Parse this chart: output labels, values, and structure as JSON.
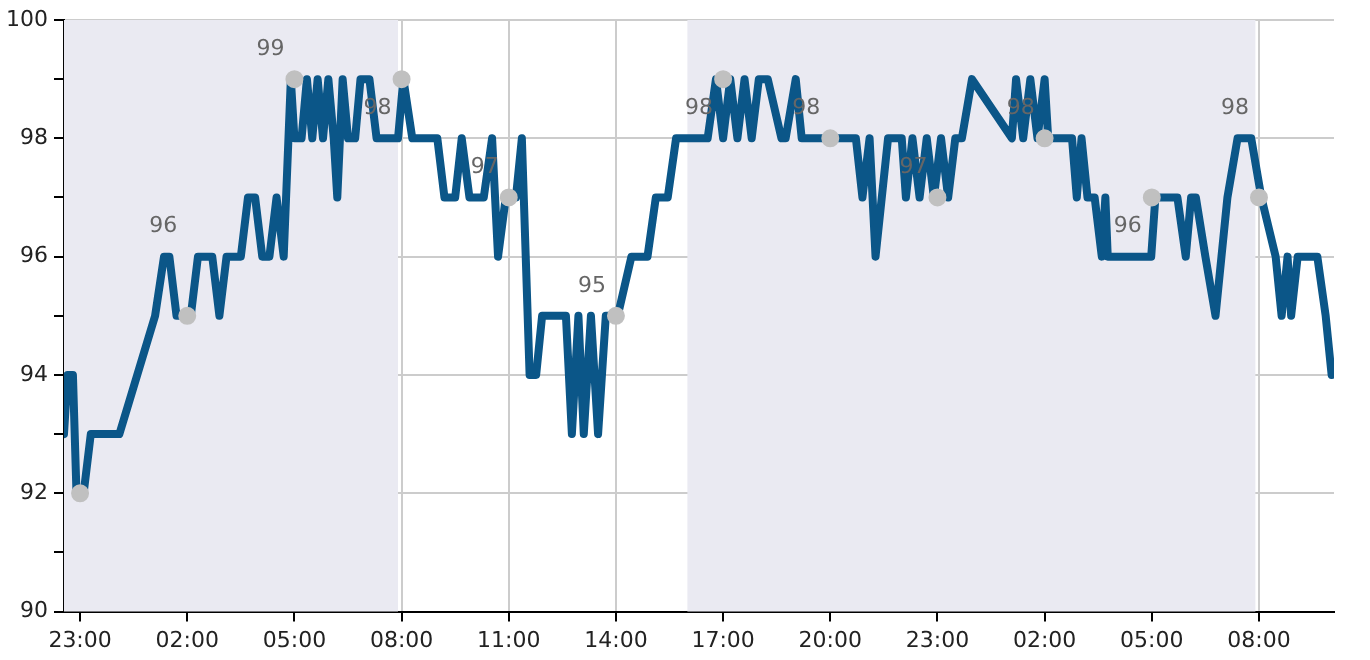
{
  "chart_data": {
    "type": "line",
    "xlim": [
      "--01-01T22:33",
      "--01-03T10:06"
    ],
    "xticks": [
      {
        "value": "--01-01T23:00",
        "label": "23:00"
      },
      {
        "value": "--01-02T02:00",
        "label": "02:00"
      },
      {
        "value": "--01-02T05:00",
        "label": "05:00"
      },
      {
        "value": "--01-02T08:00",
        "label": "08:00"
      },
      {
        "value": "--01-02T11:00",
        "label": "11:00"
      },
      {
        "value": "--01-02T14:00",
        "label": "14:00"
      },
      {
        "value": "--01-02T17:00",
        "label": "17:00"
      },
      {
        "value": "--01-02T20:00",
        "label": "20:00"
      },
      {
        "value": "--01-02T23:00",
        "label": "23:00"
      },
      {
        "value": "--01-03T02:00",
        "label": "02:00"
      },
      {
        "value": "--01-03T05:00",
        "label": "05:00"
      },
      {
        "value": "--01-03T08:00",
        "label": "08:00"
      }
    ],
    "ylim": [
      90,
      100
    ],
    "yticks": [
      90,
      {
        "value": 91,
        "label": null
      },
      92,
      {
        "value": 93,
        "label": null
      },
      94,
      {
        "value": 95,
        "label": null
      },
      96,
      {
        "value": 97,
        "label": null
      },
      98,
      {
        "value": 99,
        "label": null
      },
      100
    ],
    "grid": true,
    "bands": [
      {
        "axis": "x",
        "from": "--01-01T22:33",
        "to": "--01-02T07:54",
        "color": "#eaeaf2"
      },
      {
        "axis": "x",
        "from": "--01-02T16:00",
        "to": "--01-03T07:54",
        "color": "#eaeaf2"
      }
    ],
    "series": [
      {
        "type": "line",
        "color": "#0b5688",
        "x": [
          "--01-01T22:33",
          "--01-01T22:39",
          "--01-01T22:48",
          "--01-01T22:54",
          "--01-01T23:06",
          "--01-01T23:18",
          "--01-02T00:06",
          "--01-02T01:06",
          "--01-02T01:21",
          "--01-02T01:30",
          "--01-02T01:42",
          "--01-02T02:06",
          "--01-02T02:18",
          "--01-02T02:42",
          "--01-02T02:54",
          "--01-02T03:06",
          "--01-02T03:30",
          "--01-02T03:42",
          "--01-02T03:54",
          "--01-02T04:06",
          "--01-02T04:18",
          "--01-02T04:30",
          "--01-02T04:42",
          "--01-02T04:54",
          "--01-02T05:00",
          "--01-02T05:12",
          "--01-02T05:21",
          "--01-02T05:30",
          "--01-02T05:39",
          "--01-02T05:48",
          "--01-02T05:57",
          "--01-02T06:06",
          "--01-02T06:12",
          "--01-02T06:21",
          "--01-02T06:30",
          "--01-02T06:42",
          "--01-02T06:51",
          "--01-02T07:06",
          "--01-02T07:18",
          "--01-02T07:54",
          "--01-02T08:03",
          "--01-02T08:18",
          "--01-02T09:00",
          "--01-02T09:12",
          "--01-02T09:30",
          "--01-02T09:41",
          "--01-02T09:54",
          "--01-02T10:18",
          "--01-02T10:32",
          "--01-02T10:42",
          "--01-02T10:55",
          "--01-02T11:12",
          "--01-02T11:22",
          "--01-02T11:35",
          "--01-02T11:46",
          "--01-02T11:56",
          "--01-02T12:36",
          "--01-02T12:46",
          "--01-02T12:57",
          "--01-02T13:06",
          "--01-02T13:18",
          "--01-02T13:30",
          "--01-02T13:43",
          "--01-02T14:03",
          "--01-02T14:26",
          "--01-02T14:53",
          "--01-02T15:07",
          "--01-02T15:27",
          "--01-02T15:41",
          "--01-02T16:34",
          "--01-02T16:48",
          "--01-02T17:00",
          "--01-02T17:12",
          "--01-02T17:24",
          "--01-02T17:36",
          "--01-02T17:48",
          "--01-02T18:00",
          "--01-02T18:15",
          "--01-02T18:38",
          "--01-02T18:45",
          "--01-02T19:02",
          "--01-02T19:12",
          "--01-02T20:43",
          "--01-02T20:54",
          "--01-02T21:06",
          "--01-02T21:16",
          "--01-02T21:37",
          "--01-02T22:00",
          "--01-02T22:07",
          "--01-02T22:18",
          "--01-02T22:30",
          "--01-02T22:42",
          "--01-02T22:54",
          "--01-02T23:06",
          "--01-02T23:18",
          "--01-02T23:30",
          "--01-02T23:41",
          "--01-02T23:58",
          "--01-03T01:05",
          "--01-03T01:12",
          "--01-03T01:24",
          "--01-03T01:36",
          "--01-03T01:48",
          "--01-03T02:00",
          "--01-03T02:06",
          "--01-03T02:46",
          "--01-03T02:54",
          "--01-03T03:02",
          "--01-03T03:12",
          "--01-03T03:24",
          "--01-03T03:36",
          "--01-03T03:42",
          "--01-03T03:46",
          "--01-03T04:59",
          "--01-03T05:06",
          "--01-03T05:43",
          "--01-03T05:57",
          "--01-03T06:06",
          "--01-03T06:14",
          "--01-03T06:30",
          "--01-03T06:47",
          "--01-03T06:57",
          "--01-03T07:07",
          "--01-03T07:24",
          "--01-03T07:47",
          "--01-03T08:04",
          "--01-03T08:28",
          "--01-03T08:38",
          "--01-03T08:48",
          "--01-03T08:54",
          "--01-03T09:05",
          "--01-03T09:22",
          "--01-03T09:38",
          "--01-03T09:52",
          "--01-03T10:02"
        ],
        "values": [
          93,
          94,
          94,
          92,
          92,
          93,
          93,
          95,
          96,
          96,
          95,
          95,
          96,
          96,
          95,
          96,
          96,
          97,
          97,
          96,
          96,
          97,
          96,
          99,
          98,
          98,
          99,
          98,
          99,
          98,
          99,
          98,
          97,
          99,
          98,
          98,
          99,
          99,
          98,
          98,
          99,
          98,
          98,
          97,
          97,
          98,
          97,
          97,
          98,
          96,
          97,
          97,
          98,
          94,
          94,
          95,
          95,
          93,
          95,
          93,
          95,
          93,
          95,
          95,
          96,
          96,
          97,
          97,
          98,
          98,
          99,
          98,
          99,
          98,
          99,
          98,
          99,
          99,
          98,
          98,
          99,
          98,
          98,
          97,
          98,
          96,
          98,
          98,
          97,
          98,
          97,
          98,
          97,
          98,
          97,
          98,
          98,
          99,
          98,
          99,
          98,
          99,
          98,
          99,
          98,
          98,
          97,
          98,
          97,
          97,
          96,
          97,
          96,
          96,
          97,
          97,
          96,
          97,
          97,
          96,
          95,
          96,
          97,
          98,
          98,
          97,
          96,
          95,
          96,
          95,
          96,
          96,
          96,
          95,
          94
        ]
      },
      {
        "type": "scatter",
        "color": "#c0c0c0",
        "x": [
          "--01-01T23:00",
          "--01-02T02:00",
          "--01-02T05:00",
          "--01-02T08:00",
          "--01-02T11:00",
          "--01-02T14:00",
          "--01-02T17:00",
          "--01-02T20:00",
          "--01-02T23:00",
          "--01-03T02:00",
          "--01-03T05:00",
          "--01-03T08:00"
        ],
        "values": [
          92,
          95,
          99,
          99,
          97,
          95,
          99,
          98,
          97,
          98,
          97,
          97
        ]
      }
    ],
    "annotations": [
      "96",
      "99",
      "98",
      "97",
      "95",
      "98",
      "98",
      "97",
      "98",
      "96",
      "98"
    ]
  }
}
